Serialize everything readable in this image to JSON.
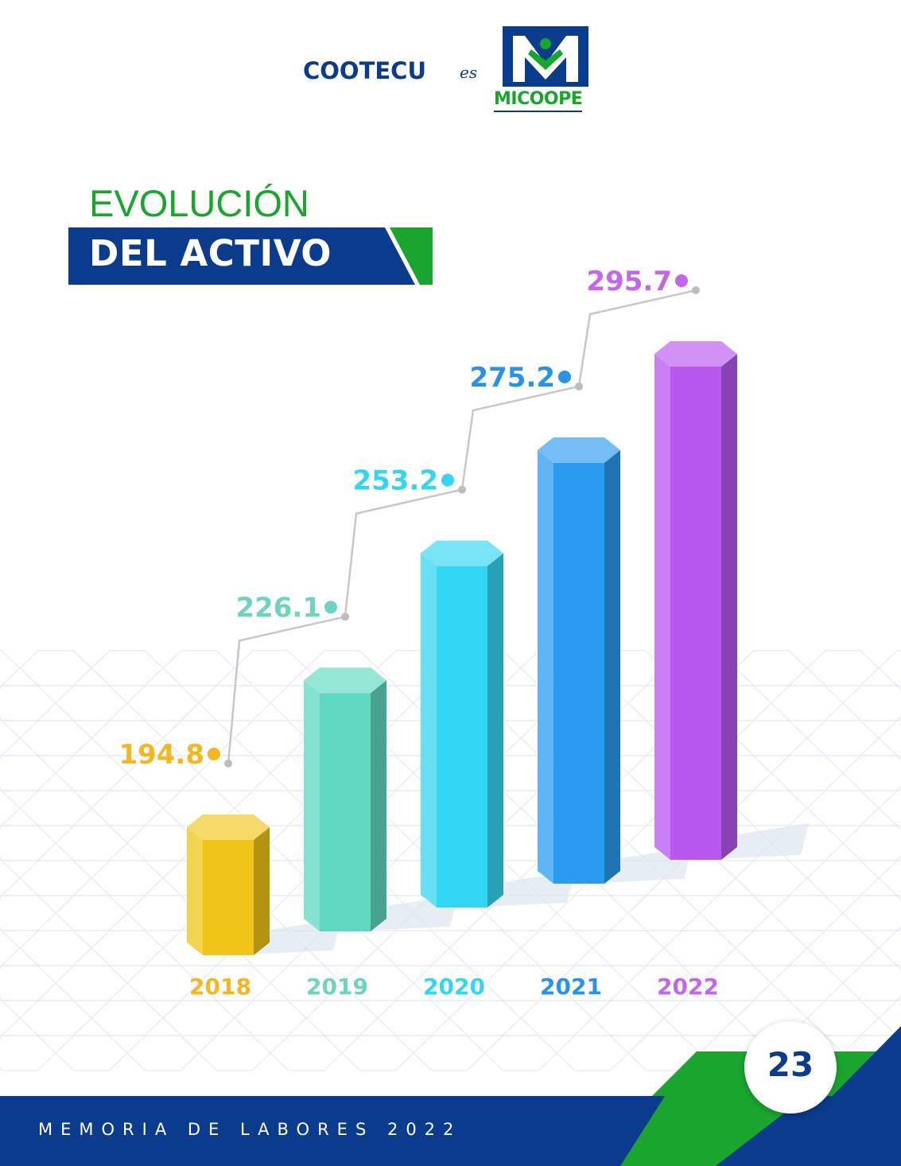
{
  "header": {
    "brand_name": "COOTECU",
    "brand_connector": "es",
    "brand_subname": "MICOOPE",
    "logo_icon": "micoope-m-logo-icon"
  },
  "title": {
    "line1": "EVOLUCIÓN",
    "line2": "DEL ACTIVO"
  },
  "footer": {
    "text": "MEMORIA DE LABORES 2022",
    "page_number": "23"
  },
  "colors": {
    "navy": "#0b3b8c",
    "green": "#1aa52e"
  },
  "chart_data": {
    "type": "bar",
    "categories": [
      "2018",
      "2019",
      "2020",
      "2021",
      "2022"
    ],
    "values": [
      194.8,
      226.1,
      253.2,
      275.2,
      295.7
    ],
    "value_labels": [
      "194.8",
      "226.1",
      "253.2",
      "275.2",
      "295.7"
    ],
    "bar_colors": [
      "#f0c419",
      "#5ed8c0",
      "#33d6f2",
      "#2b9bef",
      "#b856f0"
    ],
    "label_colors": [
      "#f5b622",
      "#6fd3c1",
      "#33d6f2",
      "#2893e8",
      "#c266ea"
    ],
    "title": "EVOLUCIÓN DEL ACTIVO",
    "xlabel": "",
    "ylabel": "",
    "connector_line": true,
    "grid": false
  }
}
